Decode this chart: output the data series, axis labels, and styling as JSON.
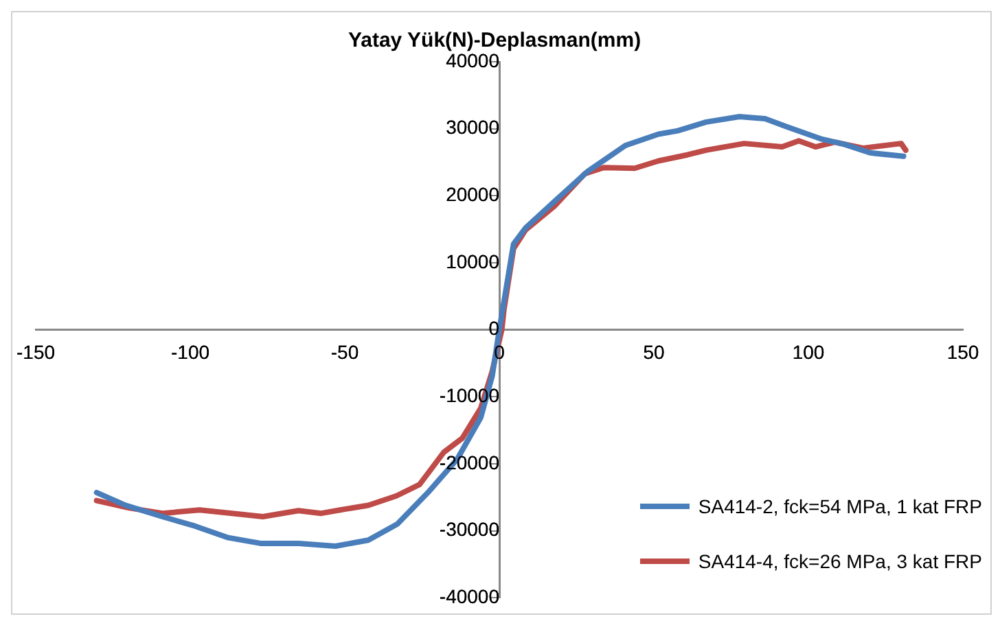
{
  "chart_data": {
    "type": "line",
    "title": "Yatay Yük(N)-Deplasman(mm)",
    "xlim": [
      -150,
      150
    ],
    "xticks": [
      -150,
      -100,
      -50,
      0,
      50,
      100,
      150
    ],
    "ylim": [
      -40000,
      40000
    ],
    "yticks": [
      -40000,
      -30000,
      -20000,
      -10000,
      0,
      10000,
      20000,
      30000,
      40000
    ],
    "grid": false,
    "legend": "bottom right",
    "marker": "none",
    "line_style": "solid",
    "series": [
      {
        "name": "SA414-2, fck=54 MPa, 1 kat FRP",
        "color": "#4a7ebb",
        "x": [
          -130.3,
          -121,
          -109,
          -98.5,
          -88,
          -77,
          -65,
          -53,
          -42.4,
          -33,
          -22.7,
          -13.6,
          -6,
          -2.3,
          0,
          4.6,
          8.5,
          17.7,
          28.5,
          40.8,
          51.5,
          57.7,
          66.9,
          77.7,
          86,
          93,
          104,
          111.5,
          120,
          130.8
        ],
        "values": [
          -24300,
          -26200,
          -27900,
          -29300,
          -31000,
          -31900,
          -31900,
          -32300,
          -31400,
          -29000,
          -24100,
          -19300,
          -13100,
          -6900,
          0,
          12800,
          15200,
          19100,
          23600,
          27500,
          29200,
          29700,
          31000,
          31800,
          31500,
          30300,
          28500,
          27700,
          26400,
          25900
        ]
      },
      {
        "name": "SA414-4, fck=26 MPa, 3 kat FRP",
        "color": "#be4b48",
        "x": [
          -130.3,
          -119.7,
          -109,
          -97,
          -86.4,
          -76.5,
          -65,
          -57.6,
          -51.5,
          -42.4,
          -33.3,
          -25.8,
          -18,
          -12,
          -6,
          -2.3,
          0.8,
          1.5,
          4.6,
          8.5,
          17.7,
          27.7,
          33.8,
          43.8,
          51.5,
          60.8,
          66.9,
          79.2,
          91.5,
          96.9,
          102.3,
          108.5,
          117.7,
          130,
          131.5
        ],
        "values": [
          -25500,
          -26600,
          -27400,
          -26900,
          -27400,
          -27900,
          -27000,
          -27400,
          -26900,
          -26200,
          -24800,
          -23100,
          -18300,
          -16200,
          -11700,
          -6200,
          0,
          3000,
          12100,
          14900,
          18400,
          23300,
          24200,
          24100,
          25200,
          26100,
          26800,
          27800,
          27300,
          28200,
          27300,
          28000,
          27100,
          27800,
          26800
        ]
      }
    ]
  }
}
